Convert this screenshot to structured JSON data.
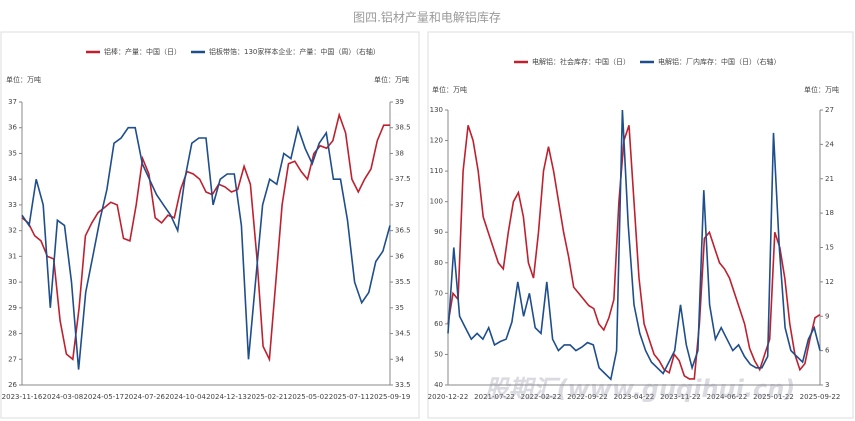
{
  "title": "图四.铝材产量和电解铝库存",
  "watermark": "股期汇(www.guqihui.cn)",
  "chart_data": [
    {
      "type": "line",
      "ylabel": "单位：万吨",
      "y2label": "单位：万吨",
      "xticks": [
        "2023-11-16",
        "2024-03-08",
        "2024-05-17",
        "2024-07-26",
        "2024-10-04",
        "2024-12-13",
        "2025-02-21",
        "2025-05-02",
        "2025-07-11",
        "2025-09-19"
      ],
      "ylim": [
        26,
        37
      ],
      "yticks": [
        26,
        27,
        28,
        29,
        30,
        31,
        32,
        33,
        34,
        35,
        36,
        37
      ],
      "y2lim": [
        33.5,
        39
      ],
      "y2ticks": [
        33.5,
        34,
        34.5,
        35,
        35.5,
        36,
        36.5,
        37,
        37.5,
        38,
        38.5,
        39
      ],
      "series": [
        {
          "name": "铝棒：产量：中国（日）",
          "color": "#c0202e",
          "values": [
            32.5,
            32.3,
            31.8,
            31.6,
            31,
            30.9,
            28.5,
            27.2,
            27,
            29,
            31.8,
            32.3,
            32.7,
            32.9,
            33.1,
            33,
            31.7,
            31.6,
            33,
            34.8,
            34.2,
            32.5,
            32.3,
            32.6,
            32.5,
            33.6,
            34.3,
            34.2,
            34,
            33.5,
            33.4,
            33.8,
            33.7,
            33.5,
            33.6,
            34.5,
            33.8,
            31,
            27.5,
            27,
            30,
            33,
            34.6,
            34.7,
            34.3,
            34,
            35,
            35.3,
            35.2,
            35.5,
            36.5,
            35.8,
            34,
            33.5,
            34,
            34.4,
            35.5,
            36.1,
            36.1
          ]
        },
        {
          "name": "铝板带箔：130家样本企业：产量：中国（周）（右轴）",
          "color": "#1f4e8c",
          "axis": "y2",
          "values": [
            36.8,
            36.6,
            37.5,
            37,
            35,
            36.7,
            36.6,
            35.5,
            33.8,
            35.3,
            36,
            36.7,
            37.3,
            38.2,
            38.3,
            38.5,
            38.5,
            37.8,
            37.5,
            37.2,
            37,
            36.8,
            36.5,
            37.5,
            38.2,
            38.3,
            38.3,
            37,
            37.5,
            37.6,
            37.6,
            36.6,
            34,
            35.5,
            37,
            37.5,
            37.4,
            38,
            37.9,
            38.5,
            38.1,
            37.8,
            38.2,
            38.4,
            37.5,
            37.5,
            36.7,
            35.5,
            35.1,
            35.3,
            35.9,
            36.1,
            36.6
          ]
        }
      ]
    },
    {
      "type": "line",
      "ylabel": "单位：万吨",
      "y2label": "单位：万吨",
      "xticks": [
        "2020-12-22",
        "2021-07-22",
        "2022-02-22",
        "2022-09-22",
        "2023-04-22",
        "2023-11-22",
        "2024-06-22",
        "2025-01-22",
        "2025-09-22"
      ],
      "ylim": [
        40,
        130
      ],
      "yticks": [
        40,
        50,
        60,
        70,
        80,
        90,
        100,
        110,
        120,
        130
      ],
      "y2lim": [
        3,
        27
      ],
      "y2ticks": [
        3,
        6,
        9,
        12,
        15,
        18,
        21,
        24,
        27
      ],
      "series": [
        {
          "name": "电解铝：社会库存：中国（日）",
          "color": "#c0202e",
          "values": [
            60,
            70,
            68,
            110,
            125,
            120,
            110,
            95,
            90,
            85,
            80,
            78,
            90,
            100,
            103,
            95,
            80,
            75,
            90,
            110,
            118,
            110,
            100,
            90,
            82,
            72,
            70,
            68,
            66,
            65,
            60,
            58,
            62,
            68,
            100,
            120,
            125,
            100,
            75,
            60,
            55,
            50,
            48,
            45,
            44,
            50,
            48,
            43,
            42,
            42,
            60,
            88,
            90,
            85,
            80,
            78,
            75,
            70,
            65,
            60,
            52,
            48,
            45,
            50,
            55,
            90,
            85,
            75,
            60,
            50,
            45,
            47,
            55,
            62,
            63
          ]
        },
        {
          "name": "电解铝：厂内库存：中国（日）（右轴）",
          "color": "#1f4e8c",
          "axis": "y2",
          "values": [
            7.5,
            15,
            9,
            8,
            7,
            7.5,
            7,
            8,
            6.5,
            6.8,
            7,
            8.5,
            12,
            9,
            11,
            8,
            7.5,
            12,
            7,
            6,
            6.5,
            6.5,
            6,
            6.3,
            6.7,
            6.5,
            4.5,
            4,
            3.5,
            6,
            27,
            17,
            10,
            7.5,
            6,
            5,
            4.5,
            4,
            5,
            6,
            10,
            6.5,
            4.5,
            6,
            20,
            10,
            7,
            8,
            7,
            6,
            6.5,
            5.5,
            4.8,
            4.5,
            4.5,
            5.5,
            25,
            15,
            8,
            6,
            5.5,
            5,
            7,
            8,
            6
          ]
        }
      ]
    }
  ]
}
